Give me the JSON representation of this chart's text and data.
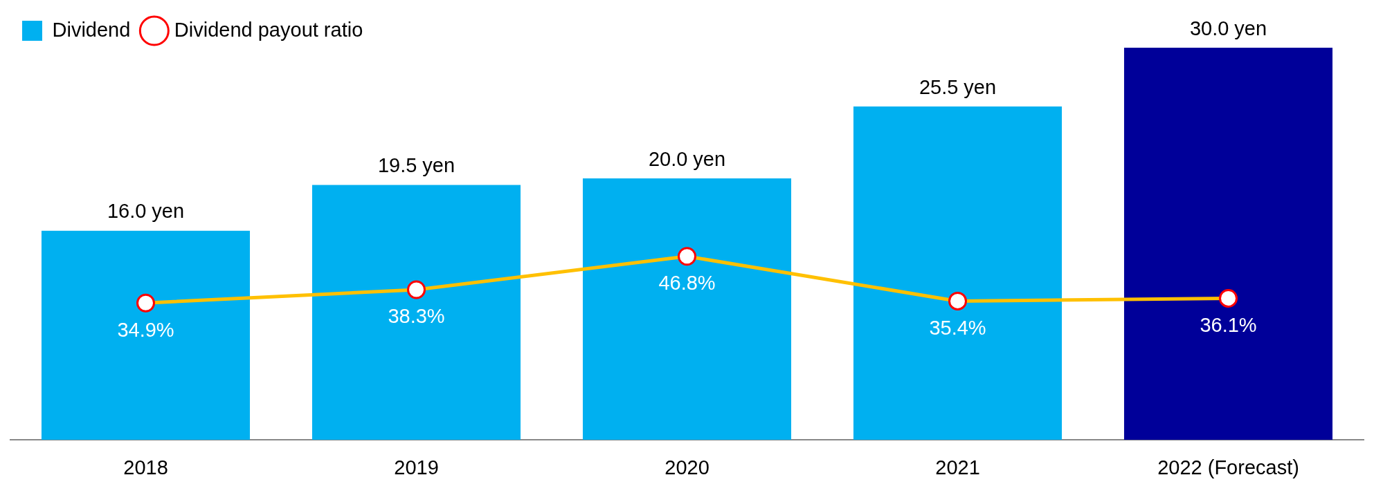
{
  "chart_data": {
    "type": "bar",
    "categories": [
      "2018",
      "2019",
      "2020",
      "2021",
      "2022 (Forecast)"
    ],
    "legend": "top left",
    "y2lim": [
      0,
      100
    ],
    "marker": "circle",
    "tick_labels": "x",
    "grid": false,
    "series": [
      {
        "name": "Dividend",
        "color": "#00b0f0",
        "colors": [
          "#00b0f0",
          "#00b0f0",
          "#00b0f0",
          "#00b0f0",
          "#000099"
        ],
        "values": [
          16.0,
          19.5,
          20.0,
          25.5,
          30.0
        ],
        "value_labels": [
          "16.0 yen",
          "19.5 yen",
          "20.0 yen",
          "25.5 yen",
          "30.0 yen"
        ]
      },
      {
        "name": "Dividend payout ratio",
        "type": "line",
        "axis": "y2",
        "color": "#ffc000",
        "values": [
          34.9,
          38.3,
          46.8,
          35.4,
          36.1
        ],
        "value_labels": [
          "34.9%",
          "38.3%",
          "46.8%",
          "35.4%",
          "36.1%"
        ]
      }
    ]
  }
}
